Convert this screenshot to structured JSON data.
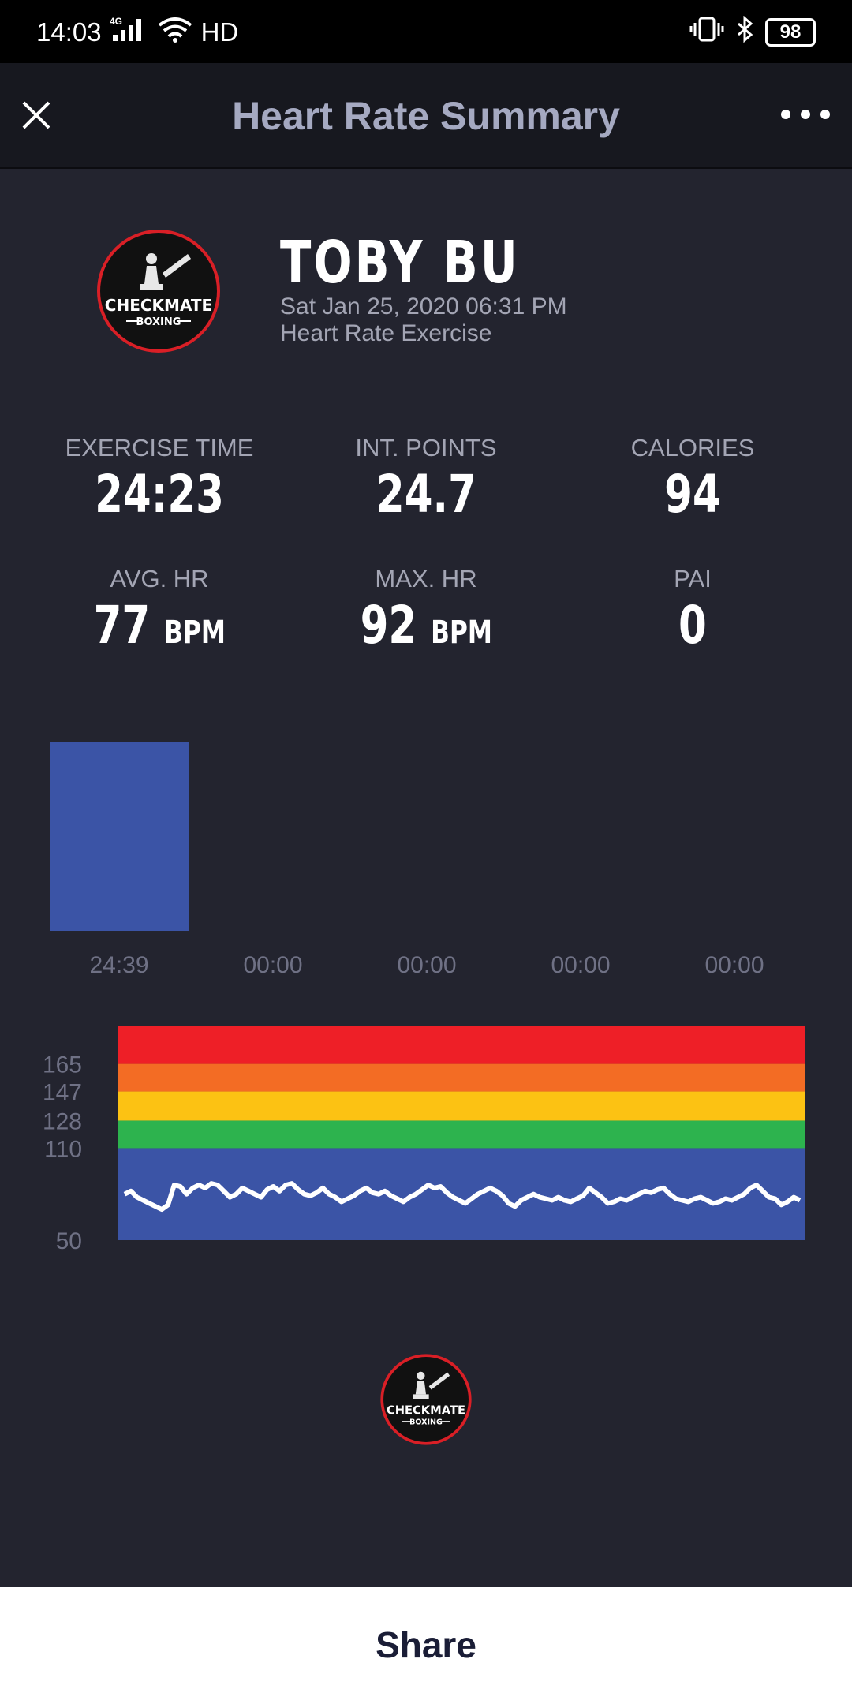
{
  "status_bar": {
    "time": "14:03",
    "network": "4G",
    "hd": "HD",
    "battery": "98"
  },
  "header": {
    "title": "Heart Rate Summary"
  },
  "logo": {
    "line1": "CHECKMATE",
    "line2": "BOXING"
  },
  "profile": {
    "name": "TOBY BU",
    "datetime": "Sat Jan 25, 2020 06:31 PM",
    "activity": "Heart Rate Exercise"
  },
  "stats": {
    "exercise_time": {
      "label": "EXERCISE TIME",
      "value": "24:23"
    },
    "int_points": {
      "label": "INT. POINTS",
      "value": "24.7"
    },
    "calories": {
      "label": "CALORIES",
      "value": "94"
    },
    "avg_hr": {
      "label": "AVG. HR",
      "value": "77",
      "unit": "BPM"
    },
    "max_hr": {
      "label": "MAX. HR",
      "value": "92",
      "unit": "BPM"
    },
    "pai": {
      "label": "PAI",
      "value": "0"
    }
  },
  "share": {
    "label": "Share"
  },
  "chart_data": [
    {
      "type": "bar",
      "categories": [
        "24:39",
        "00:00",
        "00:00",
        "00:00",
        "00:00"
      ],
      "values": [
        24.65,
        0,
        0,
        0,
        0
      ],
      "colors": [
        "#3b54a6"
      ]
    },
    {
      "type": "line",
      "ylim": [
        50,
        190
      ],
      "y_ticks": [
        50,
        110,
        128,
        147,
        165
      ],
      "zones": [
        {
          "from": 50,
          "to": 110,
          "color": "#3b54a6"
        },
        {
          "from": 110,
          "to": 128,
          "color": "#2db34e"
        },
        {
          "from": 128,
          "to": 147,
          "color": "#fcc213"
        },
        {
          "from": 147,
          "to": 165,
          "color": "#f36c24"
        },
        {
          "from": 165,
          "to": 190,
          "color": "#ee1f27"
        }
      ],
      "series": [
        {
          "color": "#ffffff",
          "values": [
            80,
            82,
            78,
            76,
            74,
            72,
            70,
            73,
            86,
            85,
            80,
            84,
            86,
            84,
            87,
            86,
            82,
            78,
            80,
            84,
            82,
            80,
            78,
            83,
            85,
            82,
            86,
            87,
            83,
            80,
            79,
            81,
            84,
            80,
            78,
            75,
            77,
            79,
            82,
            84,
            81,
            80,
            82,
            79,
            77,
            75,
            78,
            80,
            83,
            86,
            84,
            85,
            81,
            78,
            76,
            74,
            77,
            80,
            82,
            84,
            82,
            79,
            74,
            72,
            76,
            78,
            80,
            78,
            77,
            76,
            78,
            76,
            75,
            77,
            79,
            84,
            81,
            78,
            74,
            75,
            77,
            76,
            78,
            80,
            82,
            81,
            83,
            84,
            80,
            77,
            76,
            75,
            77,
            78,
            76,
            74,
            75,
            77,
            76,
            78,
            80,
            84,
            86,
            82,
            78,
            77,
            73,
            75,
            78,
            76
          ]
        }
      ]
    }
  ]
}
